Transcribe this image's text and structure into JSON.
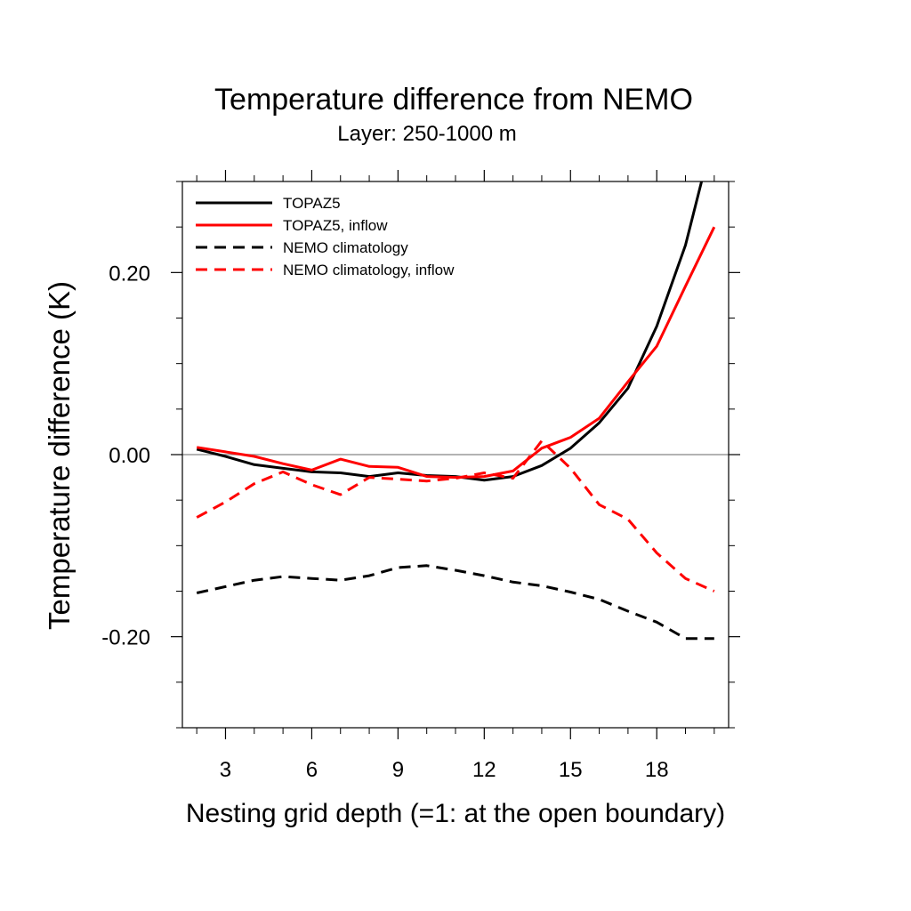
{
  "chart_data": {
    "type": "line",
    "title": "Temperature difference from NEMO",
    "subtitle": "Layer: 250-1000 m",
    "xlabel": "Nesting grid depth (=1: at the open boundary)",
    "ylabel": "Temperature difference (K)",
    "xlim": [
      1.5,
      20.5
    ],
    "ylim": [
      -0.3,
      0.3
    ],
    "xticks": [
      3,
      6,
      9,
      12,
      15,
      18
    ],
    "xtick_labels": [
      "3",
      "6",
      "9",
      "12",
      "15",
      "18"
    ],
    "yticks": [
      0.2,
      0.0,
      -0.2
    ],
    "ytick_labels": [
      "0.20",
      "0.00",
      "-0.20"
    ],
    "reference_line_y": 0.0,
    "legend_position": "top-left",
    "x": [
      2,
      3,
      4,
      5,
      6,
      7,
      8,
      9,
      10,
      11,
      12,
      13,
      14,
      15,
      16,
      17,
      18,
      19,
      20
    ],
    "series": [
      {
        "name": "TOPAZ5",
        "color": "#000000",
        "dash": "solid",
        "values": [
          0.006,
          -0.002,
          -0.011,
          -0.015,
          -0.019,
          -0.02,
          -0.024,
          -0.02,
          -0.023,
          -0.024,
          -0.028,
          -0.024,
          -0.012,
          0.007,
          0.035,
          0.073,
          0.141,
          0.23,
          0.355
        ]
      },
      {
        "name": "TOPAZ5, inflow",
        "color": "#ff0000",
        "dash": "solid",
        "values": [
          0.008,
          0.003,
          -0.002,
          -0.01,
          -0.017,
          -0.005,
          -0.013,
          -0.014,
          -0.024,
          -0.025,
          -0.024,
          -0.018,
          0.007,
          0.019,
          0.04,
          0.08,
          0.119,
          0.185,
          0.25
        ]
      },
      {
        "name": "NEMO climatology",
        "color": "#000000",
        "dash": "dashed",
        "values": [
          -0.152,
          -0.145,
          -0.138,
          -0.134,
          -0.136,
          -0.138,
          -0.133,
          -0.124,
          -0.122,
          -0.127,
          -0.133,
          -0.14,
          -0.144,
          -0.151,
          -0.159,
          -0.172,
          -0.184,
          -0.202,
          -0.202
        ]
      },
      {
        "name": "NEMO climatology, inflow",
        "color": "#ff0000",
        "dash": "dashed",
        "values": [
          -0.069,
          -0.052,
          -0.032,
          -0.019,
          -0.033,
          -0.044,
          -0.025,
          -0.027,
          -0.029,
          -0.026,
          -0.02,
          -0.026,
          0.015,
          -0.015,
          -0.055,
          -0.071,
          -0.108,
          -0.136,
          -0.15
        ]
      }
    ]
  }
}
